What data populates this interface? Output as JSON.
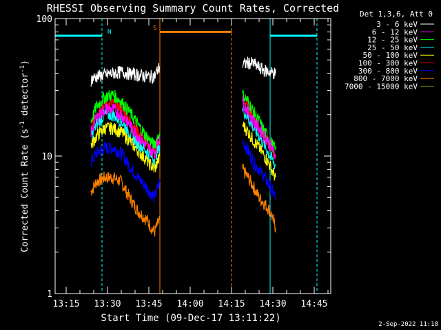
{
  "chart_data": {
    "type": "line",
    "title": "RHESSI Observing Summary Count Rates, Corrected",
    "xlabel": "Start Time (09-Dec-17 13:11:22)",
    "ylabel_main": "Corrected Count Rate (s",
    "ylabel_sup": "-1",
    "ylabel_mid": " detector",
    "ylabel_sup2": "-1",
    "ylabel_end": ")",
    "yscale": "log",
    "ylim": [
      1,
      100
    ],
    "yticks": [
      {
        "value": 1,
        "label": "1"
      },
      {
        "value": 10,
        "label": "10"
      },
      {
        "value": 100,
        "label": "100"
      }
    ],
    "xlim": [
      "13:11",
      "14:51"
    ],
    "xticks": [
      "13:15",
      "13:30",
      "13:45",
      "14:00",
      "14:15",
      "14:30",
      "14:45"
    ],
    "legend_title": "Det 1,3,6, Att 0",
    "legend_position": "right",
    "series": [
      {
        "name": "3 - 6 keV",
        "color": "#ffffff",
        "x1": [
          "13:24",
          "13:26",
          "13:29",
          "13:32",
          "13:35",
          "13:38",
          "13:41",
          "13:44",
          "13:47",
          "13:49"
        ],
        "y1": [
          36,
          38,
          39,
          40,
          41,
          40,
          39,
          38,
          38,
          45
        ],
        "x2": [
          "14:19",
          "14:21",
          "14:23",
          "14:25",
          "14:27",
          "14:29",
          "14:31"
        ],
        "y2": [
          46,
          48,
          47,
          44,
          42,
          41,
          40
        ]
      },
      {
        "name": "6 - 12 keV",
        "color": "#ff00ff",
        "x1": [
          "13:24",
          "13:26",
          "13:29",
          "13:32",
          "13:35",
          "13:38",
          "13:41",
          "13:44",
          "13:47",
          "13:49"
        ],
        "y1": [
          15,
          19,
          22,
          22,
          20,
          17,
          14,
          12,
          10.5,
          14
        ],
        "x2": [
          "14:19",
          "14:21",
          "14:23",
          "14:25",
          "14:27",
          "14:29",
          "14:31"
        ],
        "y2": [
          25,
          21,
          18,
          16,
          14,
          12,
          10
        ]
      },
      {
        "name": "12 - 25 keV",
        "color": "#00ff00",
        "x1": [
          "13:24",
          "13:26",
          "13:29",
          "13:32",
          "13:35",
          "13:38",
          "13:41",
          "13:44",
          "13:47",
          "13:49"
        ],
        "y1": [
          18,
          23,
          27,
          28,
          25,
          21,
          17,
          14,
          12,
          15
        ],
        "x2": [
          "14:19",
          "14:21",
          "14:23",
          "14:25",
          "14:27",
          "14:29",
          "14:31"
        ],
        "y2": [
          28,
          25,
          21,
          18,
          15,
          13,
          11
        ]
      },
      {
        "name": "25 - 50 keV",
        "color": "#00ffff",
        "x1": [
          "13:24",
          "13:26",
          "13:29",
          "13:32",
          "13:35",
          "13:38",
          "13:41",
          "13:44",
          "13:47",
          "13:49"
        ],
        "y1": [
          14,
          17,
          20,
          20,
          18,
          15,
          12.5,
          11,
          9.5,
          12
        ],
        "x2": [
          "14:19",
          "14:21",
          "14:23",
          "14:25",
          "14:27",
          "14:29",
          "14:31"
        ],
        "y2": [
          22,
          19,
          16,
          14,
          12,
          10,
          8.5
        ]
      },
      {
        "name": "50 - 100 keV",
        "color": "#ffff00",
        "x1": [
          "13:24",
          "13:26",
          "13:29",
          "13:32",
          "13:35",
          "13:38",
          "13:41",
          "13:44",
          "13:47",
          "13:49"
        ],
        "y1": [
          12,
          14,
          16,
          16,
          15,
          13,
          11,
          9.5,
          8,
          10
        ],
        "x2": [
          "14:19",
          "14:21",
          "14:23",
          "14:25",
          "14:27",
          "14:29",
          "14:31"
        ],
        "y2": [
          17,
          15,
          13,
          11.5,
          10,
          8.5,
          7
        ]
      },
      {
        "name": "100 - 300 keV",
        "color": "#ff0000",
        "x1": [
          "13:24",
          "13:26",
          "13:29",
          "13:32",
          "13:35",
          "13:38",
          "13:41",
          "13:44",
          "13:47",
          "13:49"
        ],
        "y1": [
          16,
          21,
          24,
          24,
          22,
          18,
          15,
          12.5,
          10.5,
          13.5
        ],
        "x2": [
          "14:19",
          "14:21",
          "14:23",
          "14:25",
          "14:27",
          "14:29",
          "14:31"
        ],
        "y2": [
          26,
          23,
          19,
          16,
          14,
          12,
          10
        ]
      },
      {
        "name": "300 - 800 keV",
        "color": "#0000ff",
        "x1": [
          "13:24",
          "13:26",
          "13:29",
          "13:32",
          "13:35",
          "13:38",
          "13:41",
          "13:44",
          "13:47",
          "13:49"
        ],
        "y1": [
          9,
          10.5,
          11.5,
          11.5,
          10.5,
          8.5,
          7,
          6,
          5,
          6.5
        ],
        "x2": [
          "14:19",
          "14:21",
          "14:23",
          "14:25",
          "14:27",
          "14:29",
          "14:31"
        ],
        "y2": [
          13,
          11,
          9,
          8,
          7,
          6,
          5
        ]
      },
      {
        "name": "800 - 7000 keV",
        "color": "#ff8000",
        "x1": [
          "13:24",
          "13:26",
          "13:29",
          "13:32",
          "13:35",
          "13:38",
          "13:41",
          "13:44",
          "13:47",
          "13:49"
        ],
        "y1": [
          5.5,
          6.5,
          7,
          7,
          6.5,
          5,
          4,
          3.5,
          2.8,
          3.5
        ],
        "x2": [
          "14:19",
          "14:21",
          "14:23",
          "14:25",
          "14:27",
          "14:29",
          "14:31"
        ],
        "y2": [
          8,
          7,
          6,
          5,
          4.5,
          4,
          3
        ]
      },
      {
        "name": "7000 - 15000 keV",
        "color": "#808000",
        "x1": [],
        "y1": [],
        "x2": [],
        "y2": []
      }
    ],
    "events": [
      {
        "type": "night",
        "label": "N",
        "color": "#00ffff",
        "y": 75,
        "from": "13:11",
        "to": "13:28"
      },
      {
        "type": "night",
        "label": "",
        "color": "#00ffff",
        "y": 75,
        "from": "14:29",
        "to": "14:46"
      },
      {
        "type": "saa",
        "label": "S",
        "color": "#ff8000",
        "y": 80,
        "from": "13:49",
        "to": "14:15"
      }
    ],
    "event_lines": [
      {
        "time": "13:11",
        "color": "#00ffff",
        "style": "solid"
      },
      {
        "time": "13:28",
        "color": "#00ffff",
        "style": "dashed"
      },
      {
        "time": "13:49",
        "color": "#ff8000",
        "style": "solid"
      },
      {
        "time": "14:15",
        "color": "#ff8000",
        "style": "dashed"
      },
      {
        "time": "14:29",
        "color": "#00ffff",
        "style": "solid"
      },
      {
        "time": "14:46",
        "color": "#00ffff",
        "style": "dashed"
      }
    ]
  },
  "footer": {
    "timestamp": "2-Sep-2022 11:18"
  }
}
